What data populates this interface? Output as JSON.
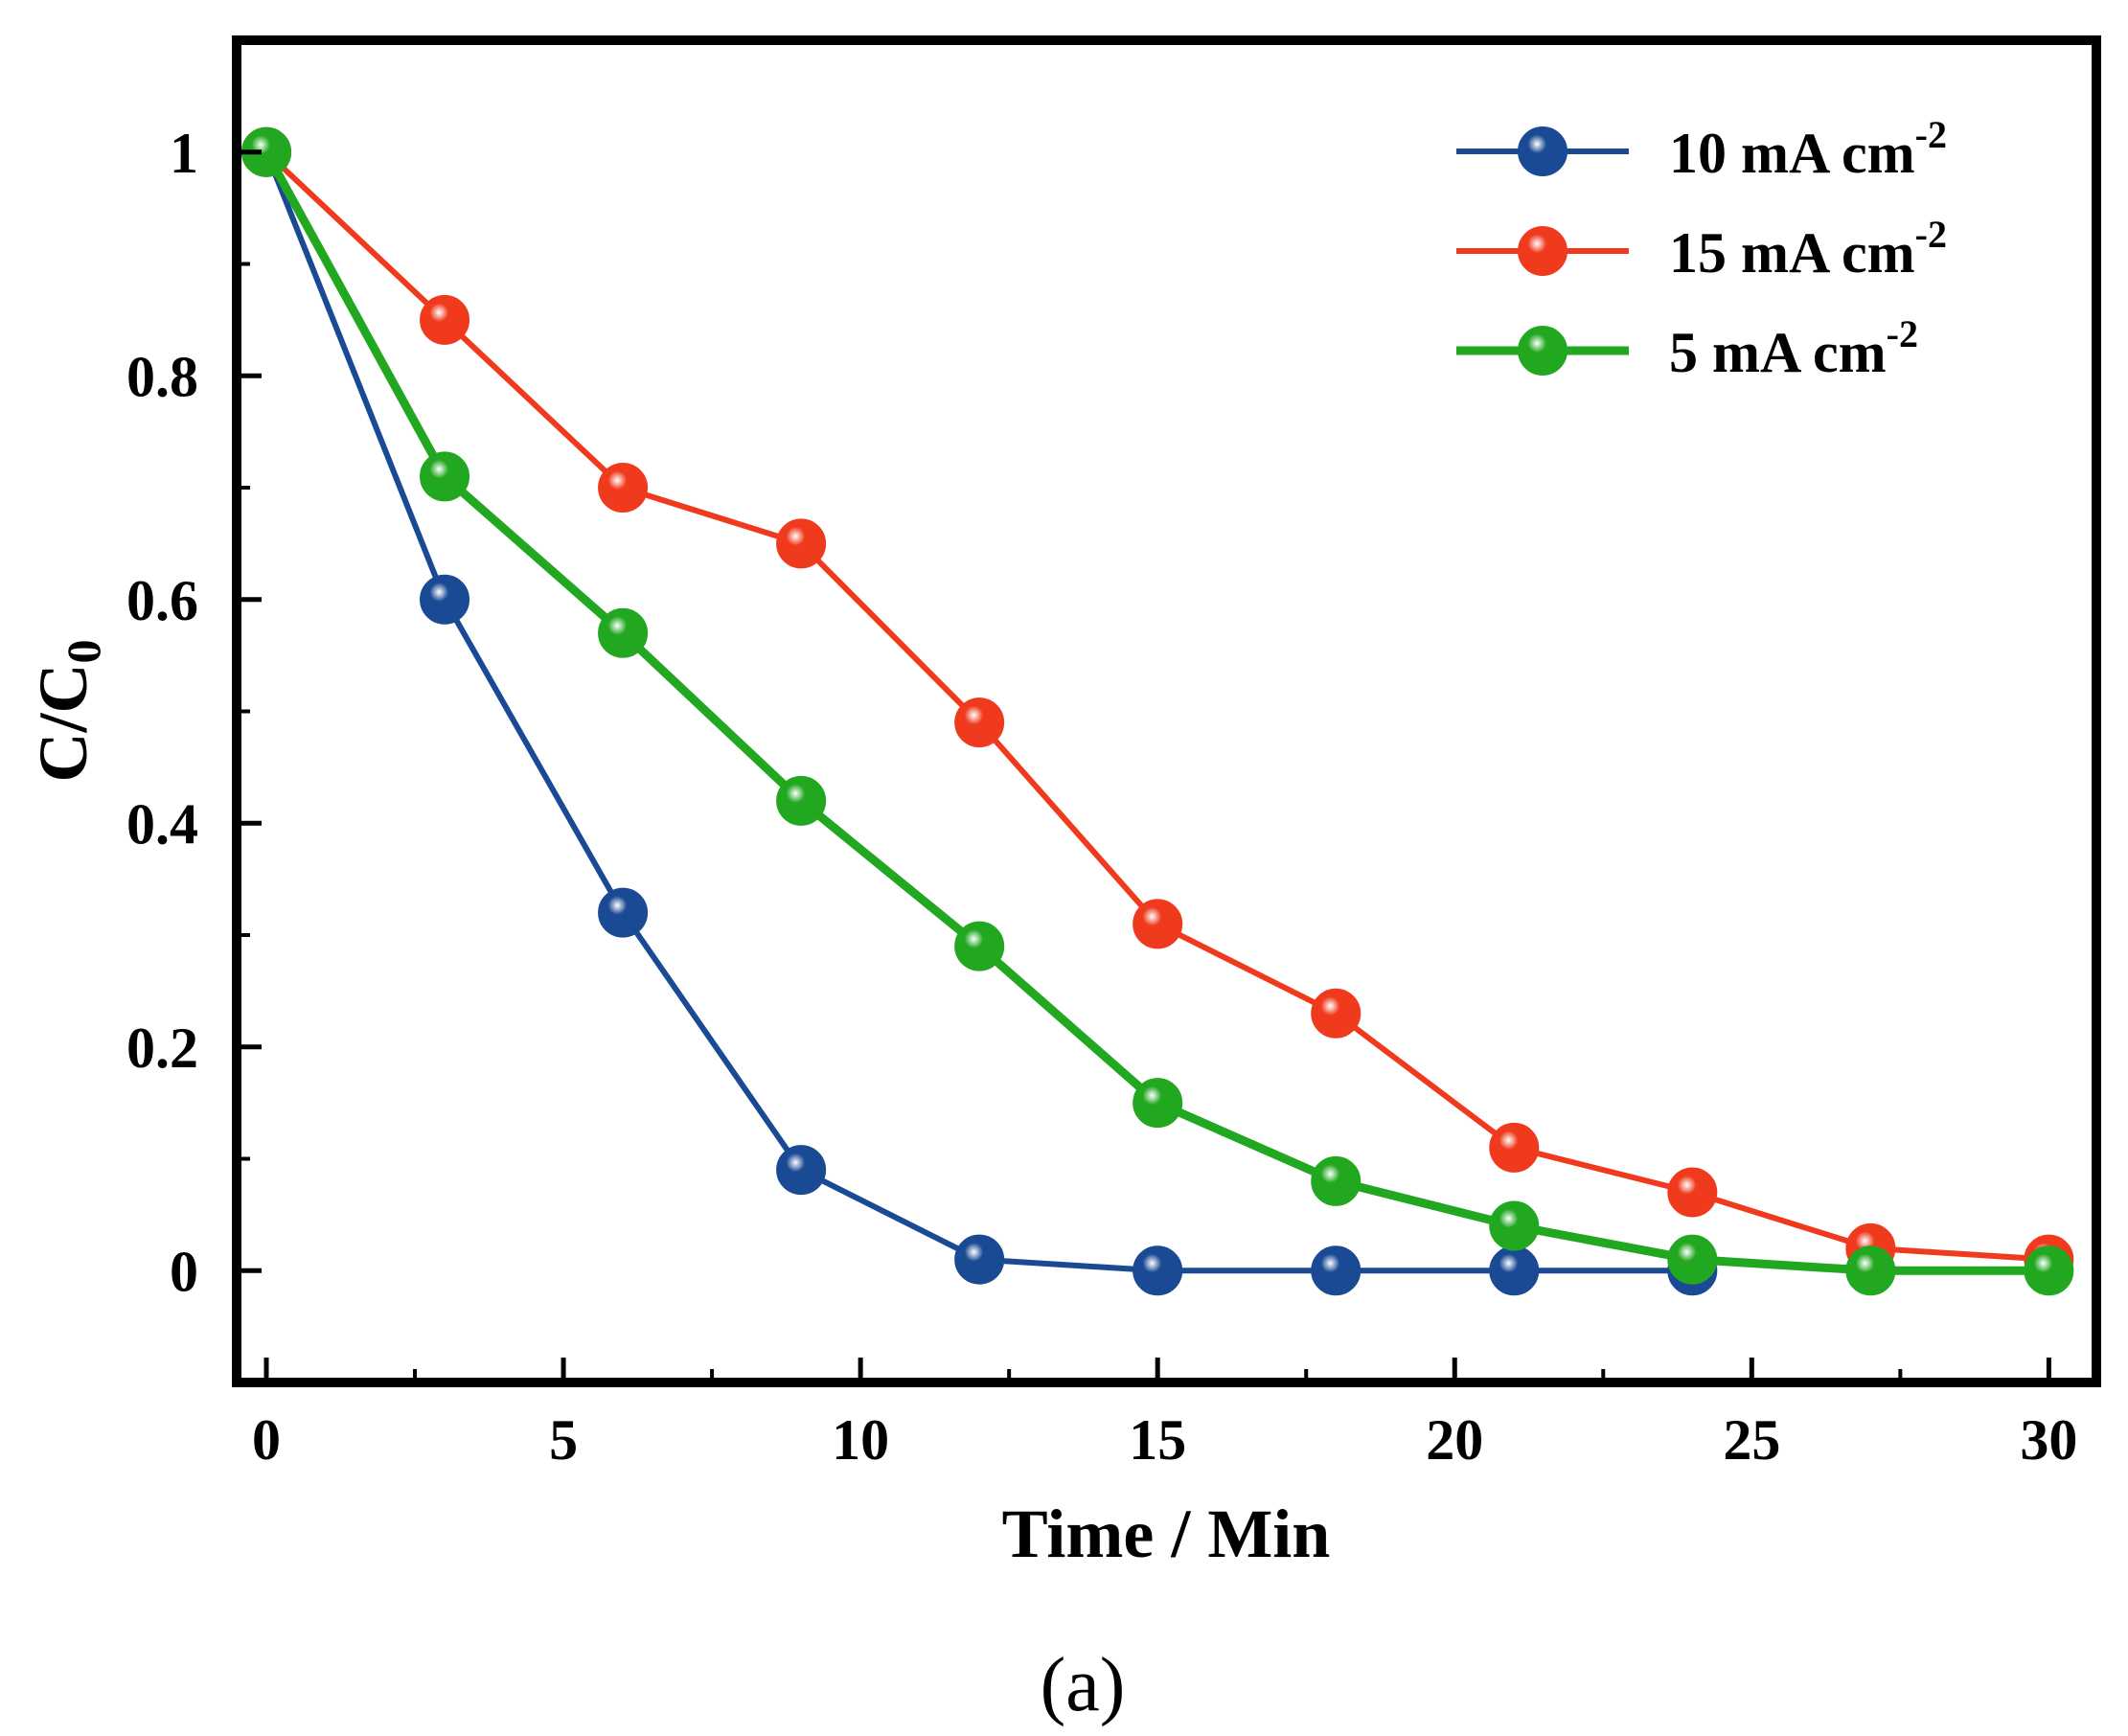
{
  "chart_data": {
    "type": "line",
    "title": "",
    "xlabel": "Time / Min",
    "ylabel": "C/C",
    "ylabel_subscript": "0",
    "xlim": [
      -0.5,
      30.8
    ],
    "ylim": [
      -0.1,
      1.1
    ],
    "xticks": [
      0,
      5,
      10,
      15,
      20,
      25,
      30
    ],
    "xtick_labels": [
      "0",
      "5",
      "10",
      "15",
      "20",
      "25",
      "30"
    ],
    "xminor": [
      2.5,
      7.5,
      12.5,
      17.5,
      22.5,
      27.5
    ],
    "yticks": [
      0,
      0.2,
      0.4,
      0.6,
      0.8,
      1
    ],
    "ytick_labels": [
      "0",
      "0.2",
      "0.4",
      "0.6",
      "0.8",
      "1"
    ],
    "yminor": [
      0.1,
      0.3,
      0.5,
      0.7,
      0.9
    ],
    "grid": false,
    "legend_position": "top-right",
    "series": [
      {
        "name": "10 mA cm",
        "sup": "-2",
        "color": "#1a4a94",
        "x": [
          0,
          3,
          6,
          9,
          12,
          15,
          18,
          21,
          24
        ],
        "y": [
          1.0,
          0.6,
          0.32,
          0.09,
          0.01,
          0.0,
          0.0,
          0.0,
          0.0
        ]
      },
      {
        "name": "15 mA cm",
        "sup": "-2",
        "color": "#f03a1e",
        "x": [
          0,
          3,
          6,
          9,
          12,
          15,
          18,
          21,
          24,
          27,
          30
        ],
        "y": [
          1.0,
          0.85,
          0.7,
          0.65,
          0.49,
          0.31,
          0.23,
          0.11,
          0.07,
          0.02,
          0.01
        ]
      },
      {
        "name": "5 mA cm",
        "sup": "-2",
        "color": "#22a820",
        "x": [
          0,
          3,
          6,
          9,
          12,
          15,
          18,
          21,
          24,
          27,
          30
        ],
        "y": [
          1.0,
          0.71,
          0.57,
          0.42,
          0.29,
          0.15,
          0.08,
          0.04,
          0.01,
          0.0,
          0.0
        ]
      }
    ]
  },
  "caption": {
    "panel_label": "(a)"
  }
}
